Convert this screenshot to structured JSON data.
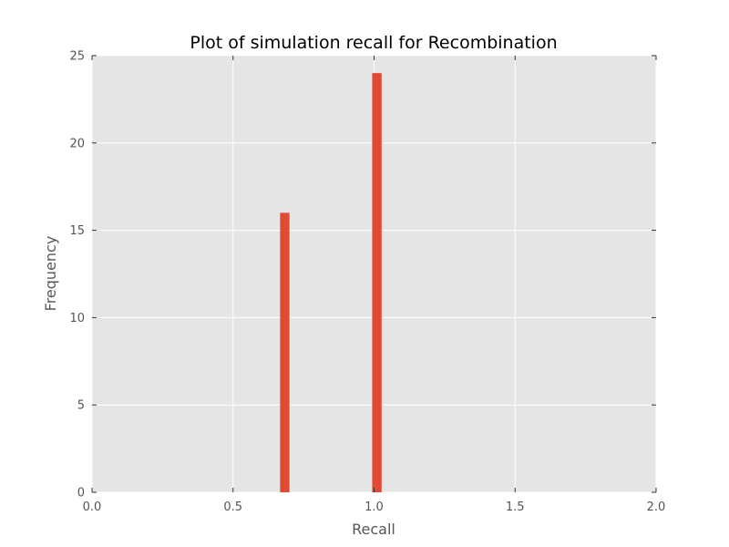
{
  "chart_data": {
    "type": "bar",
    "title": "Plot of simulation recall for Recombination",
    "xlabel": "Recall",
    "ylabel": "Frequency",
    "xlim": [
      0.0,
      2.0
    ],
    "ylim": [
      0,
      25
    ],
    "xticks": [
      "0.0",
      "0.5",
      "1.0",
      "1.5",
      "2.0"
    ],
    "xtick_values": [
      0.0,
      0.5,
      1.0,
      1.5,
      2.0
    ],
    "yticks": [
      "0",
      "5",
      "10",
      "15",
      "20",
      "25"
    ],
    "ytick_values": [
      0,
      5,
      10,
      15,
      20,
      25
    ],
    "grid": true,
    "bins": [
      {
        "x_start": 0.6667,
        "x_end": 0.7,
        "value": 16
      },
      {
        "x_start": 0.9933,
        "x_end": 1.0267,
        "value": 24
      }
    ],
    "colors": {
      "bar": "#e24a33",
      "plot_background": "#e5e5e5",
      "grid": "#ffffff",
      "tick_text": "#555555"
    }
  }
}
